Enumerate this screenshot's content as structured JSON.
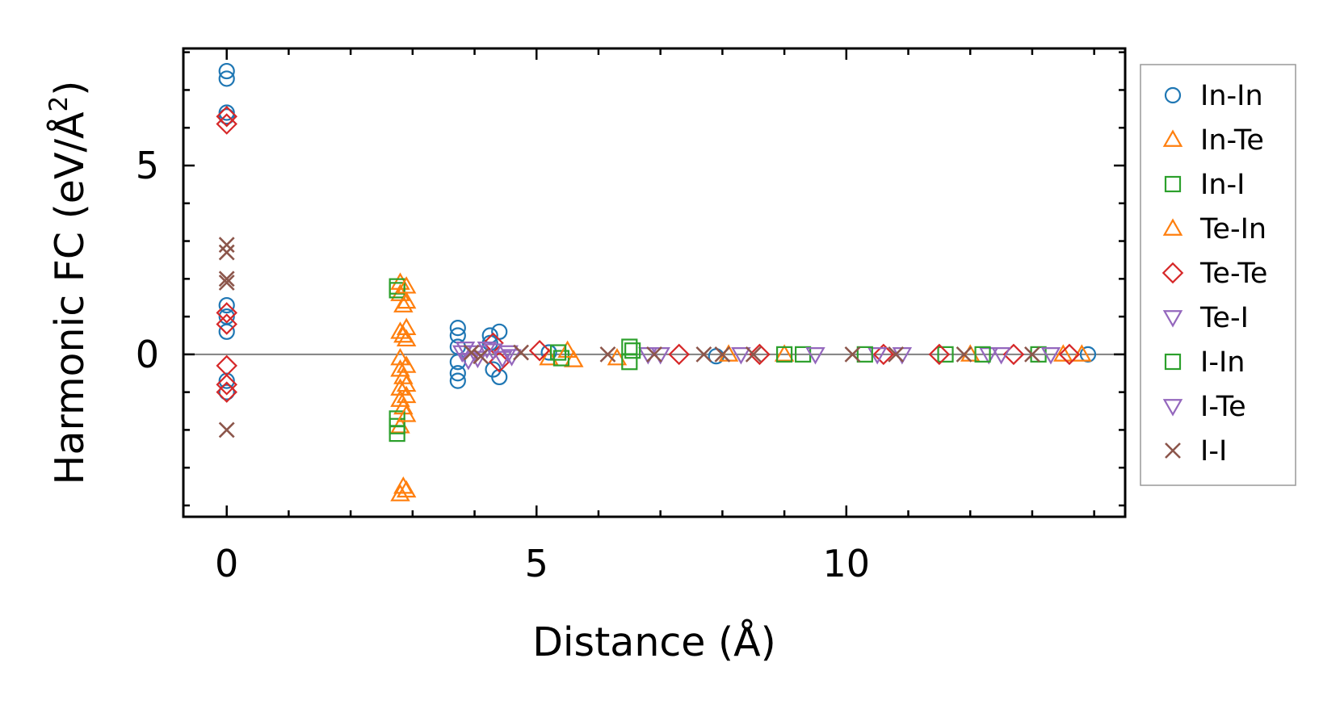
{
  "chart_data": {
    "type": "scatter",
    "xlabel": "Distance (Å)",
    "ylabel_main": "Harmonic FC (eV/Å",
    "ylabel_sup": "2",
    "ylabel_end": ")",
    "xlim": [
      -0.7,
      14.5
    ],
    "ylim": [
      -4.3,
      8.1
    ],
    "x_major_ticks": [
      0,
      5,
      10
    ],
    "x_tick_labels": [
      "0",
      "5",
      "10"
    ],
    "y_major_ticks": [
      0,
      5
    ],
    "y_tick_labels": [
      "0",
      "5"
    ],
    "x_minor_step": 1,
    "y_minor_step": 1,
    "zero_line": true,
    "grid": false,
    "legend_position": "outside-right",
    "series": [
      {
        "name": "In-In",
        "marker": "circle",
        "color": "#1f77b4",
        "points": [
          [
            0,
            7.5
          ],
          [
            0,
            7.3
          ],
          [
            0,
            6.4
          ],
          [
            0,
            6.3
          ],
          [
            0,
            1.3
          ],
          [
            0,
            1.0
          ],
          [
            0,
            0.6
          ],
          [
            0,
            -0.7
          ],
          [
            0,
            -1.0
          ],
          [
            3.73,
            0.7
          ],
          [
            3.73,
            0.5
          ],
          [
            3.73,
            0.2
          ],
          [
            3.73,
            -0.2
          ],
          [
            3.73,
            -0.5
          ],
          [
            3.73,
            -0.7
          ],
          [
            4.25,
            0.5
          ],
          [
            4.25,
            0.3
          ],
          [
            4.3,
            -0.4
          ],
          [
            4.4,
            0.6
          ],
          [
            4.4,
            -0.6
          ],
          [
            5.2,
            0.05
          ],
          [
            7.9,
            -0.05
          ],
          [
            13.9,
            0.0
          ]
        ]
      },
      {
        "name": "In-Te",
        "marker": "triangle-up",
        "color": "#ff7f0e",
        "points": [
          [
            2.8,
            1.9
          ],
          [
            2.8,
            1.6
          ],
          [
            2.85,
            1.3
          ],
          [
            2.8,
            0.6
          ],
          [
            2.85,
            0.5
          ],
          [
            2.8,
            -0.1
          ],
          [
            2.8,
            -0.4
          ],
          [
            2.85,
            -0.6
          ],
          [
            2.8,
            -0.9
          ],
          [
            2.8,
            -1.2
          ],
          [
            2.85,
            -1.4
          ],
          [
            2.8,
            -1.9
          ],
          [
            2.85,
            -3.5
          ],
          [
            2.8,
            -3.7
          ],
          [
            5.2,
            -0.1
          ],
          [
            5.6,
            -0.15
          ],
          [
            6.3,
            -0.1
          ],
          [
            9.0,
            0.0
          ],
          [
            12.0,
            0.0
          ],
          [
            13.8,
            0.0
          ]
        ]
      },
      {
        "name": "In-I",
        "marker": "square",
        "color": "#2ca02c",
        "points": [
          [
            2.75,
            1.8
          ],
          [
            2.75,
            1.7
          ],
          [
            2.75,
            -1.7
          ],
          [
            2.75,
            -1.9
          ],
          [
            2.75,
            -2.1
          ],
          [
            5.4,
            -0.1
          ],
          [
            6.5,
            0.2
          ],
          [
            6.5,
            -0.2
          ],
          [
            9.3,
            0.0
          ],
          [
            11.6,
            0.0
          ],
          [
            13.1,
            0.0
          ]
        ]
      },
      {
        "name": "Te-In",
        "marker": "triangle-up",
        "color": "#ff7f0e",
        "points": [
          [
            2.9,
            1.8
          ],
          [
            2.9,
            1.4
          ],
          [
            2.9,
            0.7
          ],
          [
            2.9,
            0.4
          ],
          [
            2.9,
            -0.3
          ],
          [
            2.9,
            -0.8
          ],
          [
            2.9,
            -1.1
          ],
          [
            2.9,
            -1.6
          ],
          [
            2.9,
            -3.6
          ],
          [
            5.5,
            0.1
          ],
          [
            8.1,
            0.0
          ],
          [
            13.5,
            0.0
          ]
        ]
      },
      {
        "name": "Te-Te",
        "marker": "diamond",
        "color": "#d62728",
        "points": [
          [
            0,
            6.3
          ],
          [
            0,
            6.1
          ],
          [
            0,
            1.1
          ],
          [
            0,
            0.8
          ],
          [
            0,
            -0.3
          ],
          [
            0,
            -0.8
          ],
          [
            0,
            -1.0
          ],
          [
            4.3,
            0.3
          ],
          [
            4.4,
            -0.2
          ],
          [
            5.05,
            0.1
          ],
          [
            7.3,
            0.0
          ],
          [
            8.6,
            0.0
          ],
          [
            10.6,
            0.0
          ],
          [
            11.5,
            0.0
          ],
          [
            12.7,
            0.0
          ],
          [
            13.6,
            0.0
          ]
        ]
      },
      {
        "name": "Te-I",
        "marker": "triangle-down",
        "color": "#9467bd",
        "points": [
          [
            3.85,
            0.15
          ],
          [
            3.9,
            -0.15
          ],
          [
            4.0,
            0.05
          ],
          [
            4.3,
            0.1
          ],
          [
            4.45,
            -0.1
          ],
          [
            4.55,
            0.05
          ],
          [
            6.8,
            0.0
          ],
          [
            9.5,
            0.0
          ],
          [
            10.5,
            0.0
          ],
          [
            12.3,
            0.0
          ],
          [
            13.3,
            0.0
          ]
        ]
      },
      {
        "name": "I-In",
        "marker": "square",
        "color": "#2ca02c",
        "points": [
          [
            5.35,
            0.05
          ],
          [
            6.55,
            0.1
          ],
          [
            9.0,
            0.0
          ],
          [
            10.3,
            0.0
          ],
          [
            12.2,
            0.0
          ]
        ]
      },
      {
        "name": "I-Te",
        "marker": "triangle-down",
        "color": "#9467bd",
        "points": [
          [
            3.8,
            0.05
          ],
          [
            4.05,
            -0.1
          ],
          [
            4.2,
            0.15
          ],
          [
            4.6,
            -0.05
          ],
          [
            7.0,
            0.0
          ],
          [
            8.3,
            0.0
          ],
          [
            10.9,
            0.0
          ],
          [
            12.5,
            0.0
          ]
        ]
      },
      {
        "name": "I-I",
        "marker": "x",
        "color": "#8c564b",
        "points": [
          [
            0,
            2.9
          ],
          [
            0,
            2.7
          ],
          [
            0,
            2.0
          ],
          [
            0,
            1.9
          ],
          [
            0,
            -2.0
          ],
          [
            3.95,
            0.05
          ],
          [
            4.1,
            -0.05
          ],
          [
            4.75,
            0.05
          ],
          [
            6.15,
            0.0
          ],
          [
            6.9,
            0.0
          ],
          [
            7.7,
            0.0
          ],
          [
            8.0,
            0.0
          ],
          [
            8.5,
            0.0
          ],
          [
            10.1,
            0.0
          ],
          [
            10.8,
            0.0
          ],
          [
            11.9,
            0.0
          ],
          [
            13.0,
            0.0
          ]
        ]
      }
    ]
  }
}
